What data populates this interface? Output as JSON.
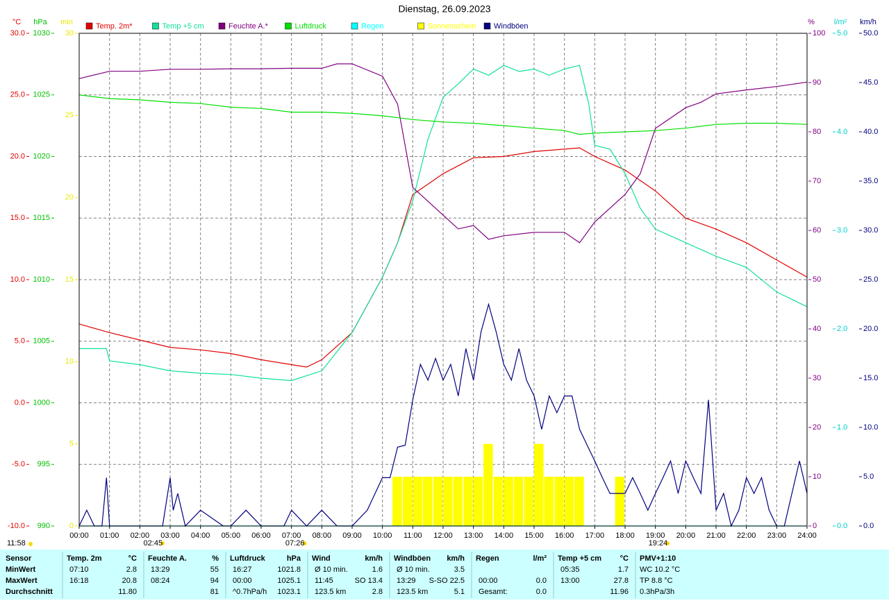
{
  "chart_data": {
    "type": "line",
    "title": "Dienstag, 26.09.2023",
    "grid": true,
    "xlim": [
      0,
      24
    ],
    "xticks": [
      {
        "value": 0,
        "label": "00:00"
      },
      {
        "value": 1,
        "label": "01:00"
      },
      {
        "value": 2,
        "label": "02:00"
      },
      {
        "value": 3,
        "label": "03:00"
      },
      {
        "value": 4,
        "label": "04:00"
      },
      {
        "value": 5,
        "label": "05:00"
      },
      {
        "value": 6,
        "label": "06:00"
      },
      {
        "value": 7,
        "label": "07:00"
      },
      {
        "value": 8,
        "label": "08:00"
      },
      {
        "value": 9,
        "label": "09:00"
      },
      {
        "value": 10,
        "label": "10:00"
      },
      {
        "value": 11,
        "label": "11:00"
      },
      {
        "value": 12,
        "label": "12:00"
      },
      {
        "value": 13,
        "label": "13:00"
      },
      {
        "value": 14,
        "label": "14:00"
      },
      {
        "value": 15,
        "label": "15:00"
      },
      {
        "value": 16,
        "label": "16:00"
      },
      {
        "value": 17,
        "label": "17:00"
      },
      {
        "value": 18,
        "label": "18:00"
      },
      {
        "value": 19,
        "label": "19:00"
      },
      {
        "value": 20,
        "label": "20:00"
      },
      {
        "value": 21,
        "label": "21:00"
      },
      {
        "value": 22,
        "label": "22:00"
      },
      {
        "value": 23,
        "label": "23:00"
      },
      {
        "value": 24,
        "label": "24:00"
      }
    ],
    "axes": [
      {
        "unit": "°C",
        "side": "left",
        "color": "#e00000",
        "lim": [
          -10,
          30
        ],
        "ticks": [
          {
            "value": -10,
            "label": "-10.0"
          },
          {
            "value": -5,
            "label": "-5.0"
          },
          {
            "value": 0,
            "label": "0.0"
          },
          {
            "value": 5,
            "label": "5.0"
          },
          {
            "value": 10,
            "label": "10.0"
          },
          {
            "value": 15,
            "label": "15.0"
          },
          {
            "value": 20,
            "label": "20.0"
          },
          {
            "value": 25,
            "label": "25.0"
          },
          {
            "value": 30,
            "label": "30.0"
          }
        ]
      },
      {
        "unit": "hPa",
        "side": "left",
        "color": "#00c000",
        "lim": [
          990,
          1030
        ],
        "ticks": [
          990,
          995,
          1000,
          1005,
          1010,
          1015,
          1020,
          1025,
          1030
        ]
      },
      {
        "unit": "min",
        "side": "left",
        "color": "#e8e800",
        "lim": [
          0,
          30
        ],
        "ticks": [
          0,
          5,
          10,
          15,
          20,
          25,
          30
        ]
      },
      {
        "unit": "%",
        "side": "right",
        "color": "#800080",
        "lim": [
          0,
          100
        ],
        "ticks": [
          0,
          10,
          20,
          30,
          40,
          50,
          60,
          70,
          80,
          90,
          100
        ]
      },
      {
        "unit": "l/m²",
        "side": "right",
        "color": "#00d0d0",
        "lim": [
          0,
          5
        ],
        "ticks": [
          {
            "value": 0,
            "label": "0.0"
          },
          {
            "value": 1,
            "label": "1.0"
          },
          {
            "value": 2,
            "label": "2.0"
          },
          {
            "value": 3,
            "label": "3.0"
          },
          {
            "value": 4,
            "label": "4.0"
          },
          {
            "value": 5,
            "label": "5.0"
          }
        ]
      },
      {
        "unit": "km/h",
        "side": "right",
        "color": "#000080",
        "lim": [
          0,
          50
        ],
        "ticks": [
          {
            "value": 0,
            "label": "0.0"
          },
          {
            "value": 5,
            "label": "5.0"
          },
          {
            "value": 10,
            "label": "10.0"
          },
          {
            "value": 15,
            "label": "15.0"
          },
          {
            "value": 20,
            "label": "20.0"
          },
          {
            "value": 25,
            "label": "25.0"
          },
          {
            "value": 30,
            "label": "30.0"
          },
          {
            "value": 35,
            "label": "35.0"
          },
          {
            "value": 40,
            "label": "40.0"
          },
          {
            "value": 45,
            "label": "45.0"
          },
          {
            "value": 50,
            "label": "50.0"
          }
        ]
      }
    ],
    "series": [
      {
        "name": "Temp. 2m*",
        "color": "#e00000",
        "type": "line",
        "axis": 0,
        "x": [
          0,
          1,
          2,
          3,
          4,
          5,
          6,
          7,
          7.5,
          8,
          9,
          10,
          10.5,
          11,
          12,
          13,
          14,
          15,
          16,
          16.5,
          17,
          18,
          19,
          20,
          21,
          22,
          23,
          24
        ],
        "values": [
          6.4,
          5.7,
          5.1,
          4.5,
          4.3,
          4.0,
          3.5,
          3.1,
          2.9,
          3.5,
          5.7,
          10.2,
          13.0,
          16.9,
          18.6,
          19.9,
          20.0,
          20.4,
          20.6,
          20.7,
          20.0,
          18.9,
          17.2,
          15.0,
          14.1,
          13.0,
          11.6,
          10.2
        ]
      },
      {
        "name": "Temp +5 cm",
        "color": "#10e098",
        "type": "line",
        "axis": 0,
        "x": [
          0,
          0.9,
          1,
          2,
          3,
          4,
          5,
          6,
          7,
          8,
          9,
          10,
          10.5,
          11,
          11.5,
          12,
          12.5,
          13,
          13.5,
          14,
          14.5,
          15,
          15.5,
          16,
          16.5,
          16.8,
          17,
          17.5,
          18,
          18.5,
          19,
          20,
          21,
          22,
          23,
          24
        ],
        "values": [
          4.4,
          4.4,
          3.4,
          3.1,
          2.6,
          2.4,
          2.3,
          2.0,
          1.8,
          2.6,
          5.7,
          10.2,
          13.0,
          16.4,
          21.4,
          24.8,
          25.9,
          27.1,
          26.6,
          27.4,
          26.9,
          27.1,
          26.6,
          27.1,
          27.4,
          24.3,
          20.9,
          20.6,
          18.6,
          15.8,
          14.1,
          13.0,
          11.9,
          11.0,
          9.0,
          7.8
        ]
      },
      {
        "name": "Feuchte A.*",
        "color": "#800080",
        "type": "line",
        "axis": 3,
        "x": [
          0,
          1,
          2,
          3,
          4,
          5,
          6,
          7,
          8,
          8.5,
          9,
          10,
          10.5,
          11,
          11.5,
          12,
          12.5,
          13,
          13.5,
          14,
          15,
          16,
          16.5,
          17,
          18,
          18.5,
          19,
          20,
          20.5,
          21,
          22,
          23,
          24
        ],
        "values": [
          90.8,
          92.3,
          92.3,
          92.7,
          92.7,
          92.8,
          92.8,
          92.9,
          92.9,
          93.8,
          93.8,
          91.3,
          85.6,
          68.7,
          65.9,
          63.1,
          60.3,
          61.0,
          58.2,
          58.9,
          59.6,
          59.6,
          57.5,
          61.7,
          67.3,
          71.5,
          80.7,
          84.9,
          86.0,
          87.7,
          88.5,
          89.2,
          90.1
        ]
      },
      {
        "name": "Luftdruck",
        "color": "#00e000",
        "type": "line",
        "axis": 1,
        "x": [
          0,
          1,
          2,
          3,
          4,
          5,
          6,
          7,
          8,
          9,
          10,
          11,
          12,
          13,
          14,
          15,
          16,
          16.5,
          17,
          18,
          19,
          20,
          21,
          22,
          23,
          24
        ],
        "values": [
          1025.0,
          1024.7,
          1024.6,
          1024.4,
          1024.3,
          1024.0,
          1023.9,
          1023.6,
          1023.6,
          1023.5,
          1023.3,
          1023.0,
          1022.8,
          1022.7,
          1022.5,
          1022.3,
          1022.1,
          1021.8,
          1021.9,
          1022.0,
          1022.1,
          1022.3,
          1022.6,
          1022.7,
          1022.7,
          1022.6
        ]
      },
      {
        "name": "Regen",
        "color": "#00ffff",
        "type": "line",
        "axis": 4,
        "x": [
          0,
          24
        ],
        "values": [
          0,
          0
        ]
      },
      {
        "name": "Sonnenschein",
        "color": "#ffff00",
        "type": "bar",
        "axis": 2,
        "x": [
          10.33,
          10.67,
          11.0,
          11.33,
          11.67,
          12.0,
          12.33,
          12.67,
          13.0,
          13.33,
          13.67,
          14.0,
          14.33,
          14.67,
          15.0,
          15.33,
          15.67,
          16.0,
          16.33,
          17.67
        ],
        "values": [
          3,
          3,
          3,
          3,
          3,
          3,
          3,
          3,
          3,
          5,
          3,
          3,
          3,
          3,
          5,
          3,
          3,
          3,
          3,
          3
        ]
      },
      {
        "name": "Windböen",
        "color": "#000080",
        "type": "line",
        "axis": 5,
        "x": [
          0,
          0.25,
          0.5,
          0.75,
          0.9,
          1.0,
          1.25,
          2.5,
          2.75,
          3.0,
          3.1,
          3.25,
          3.5,
          4.0,
          4.75,
          5.0,
          5.5,
          6.0,
          6.75,
          7.0,
          7.5,
          8.0,
          8.5,
          9.0,
          9.5,
          10.0,
          10.25,
          10.5,
          10.75,
          11.0,
          11.25,
          11.5,
          11.75,
          12.0,
          12.25,
          12.5,
          12.75,
          13.0,
          13.25,
          13.5,
          13.75,
          14.0,
          14.25,
          14.5,
          14.75,
          15.0,
          15.25,
          15.5,
          15.75,
          16.0,
          16.25,
          16.5,
          16.75,
          17.0,
          17.25,
          17.5,
          17.75,
          18.0,
          18.25,
          18.5,
          18.75,
          19.0,
          19.25,
          19.5,
          19.75,
          20.0,
          20.25,
          20.5,
          20.75,
          21.0,
          21.25,
          21.5,
          21.75,
          22.0,
          22.25,
          22.5,
          22.75,
          23.0,
          23.25,
          23.5,
          23.75,
          24.0
        ],
        "values": [
          0,
          1.6,
          0,
          0,
          4.9,
          0,
          0,
          0,
          0,
          4.9,
          1.6,
          3.3,
          0,
          1.6,
          0,
          0,
          1.6,
          0,
          0,
          1.6,
          0,
          1.6,
          0,
          0,
          1.6,
          4.9,
          4.9,
          8.0,
          8.2,
          12.8,
          16.4,
          14.8,
          17.0,
          14.8,
          16.4,
          13.2,
          18.0,
          14.8,
          19.7,
          22.5,
          19.7,
          16.4,
          14.8,
          18.0,
          14.8,
          13.2,
          9.8,
          13.2,
          11.5,
          13.2,
          13.2,
          9.8,
          8.2,
          6.6,
          4.9,
          3.3,
          3.3,
          3.3,
          4.9,
          3.3,
          1.6,
          3.3,
          4.9,
          6.6,
          3.3,
          6.6,
          4.9,
          3.3,
          12.8,
          1.6,
          3.3,
          0,
          1.6,
          4.9,
          3.3,
          4.9,
          1.6,
          0,
          0,
          3.3,
          6.6,
          3.3
        ]
      }
    ],
    "annotations": [
      {
        "x": 2.75,
        "text": "02:45"
      },
      {
        "x": 7.43,
        "text": "07:26"
      },
      {
        "x": 19.4,
        "text": "19:24"
      }
    ],
    "corner_label": "11:58"
  },
  "table": {
    "header": {
      "label": "Sensor",
      "groups": [
        [
          "Temp. 2m",
          "°C"
        ],
        [
          "Feuchte A.",
          "%"
        ],
        [
          "Luftdruck",
          "hPa"
        ],
        [
          "Wind",
          "km/h"
        ],
        [
          "Windböen",
          "km/h"
        ],
        [
          "Regen",
          "l/m²"
        ],
        [
          "Temp +5 cm",
          "°C"
        ],
        [
          "PMV+1:10"
        ]
      ]
    },
    "rows": [
      {
        "label": "MinWert",
        "groups": [
          [
            "07:10",
            "2.8"
          ],
          [
            "13:29",
            "55"
          ],
          [
            "16:27",
            "1021.8"
          ],
          [
            "Ø 10 min.",
            "1.6"
          ],
          [
            "Ø 10 min.",
            "3.5"
          ],
          [
            null,
            null
          ],
          [
            "05:35",
            "1.7"
          ],
          [
            "WC 10.2 °C"
          ]
        ]
      },
      {
        "label": "MaxWert",
        "groups": [
          [
            "16:18",
            "20.8"
          ],
          [
            "08:24",
            "94"
          ],
          [
            "00:00",
            "1025.1"
          ],
          [
            "11:45",
            "SO 13.4"
          ],
          [
            "13:29",
            "S-SO 22.5"
          ],
          [
            "00:00",
            "0.0"
          ],
          [
            "13:00",
            "27.8"
          ],
          [
            "TP 8.8 °C"
          ]
        ]
      },
      {
        "label": "Durchschnitt",
        "groups": [
          [
            null,
            "11.80"
          ],
          [
            null,
            "81"
          ],
          [
            "^0.7hPa/h",
            "1023.1"
          ],
          [
            "123.5 km",
            "2.8"
          ],
          [
            "123.5 km",
            "5.1"
          ],
          [
            "Gesamt:",
            "0.0"
          ],
          [
            null,
            "11.96"
          ],
          [
            "0.3hPa/3h"
          ]
        ]
      }
    ]
  }
}
